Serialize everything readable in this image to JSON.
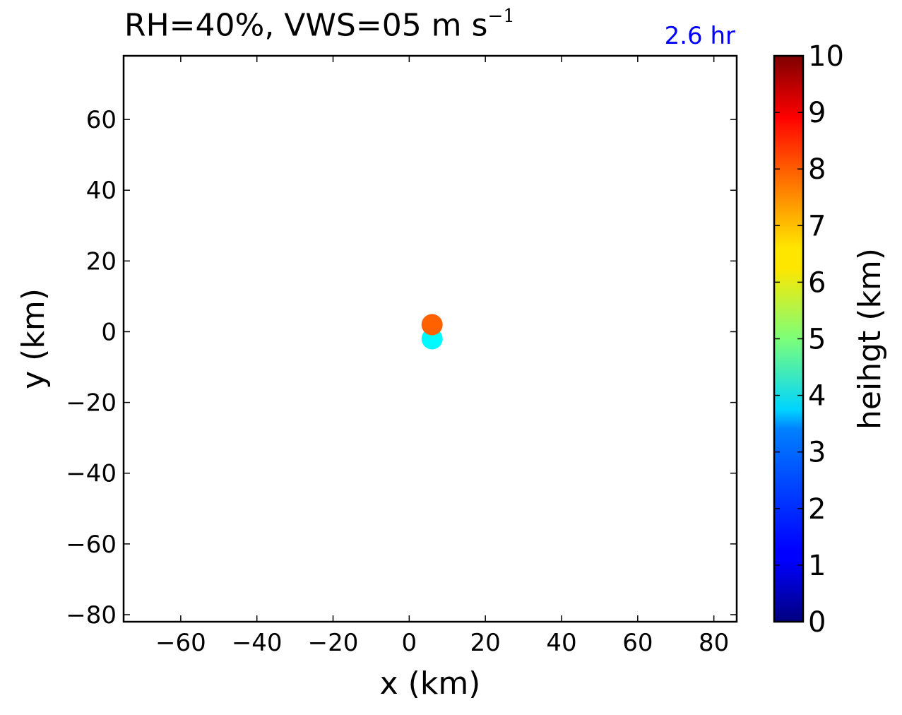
{
  "chart_data": {
    "type": "scatter",
    "title_prefix": "RH=40%, VWS=05 m s",
    "title_superscript": "−1",
    "time_label": "2.6 hr",
    "xlabel": "x (km)",
    "ylabel": "y (km)",
    "xlim": [
      -75,
      86
    ],
    "ylim": [
      -82,
      78
    ],
    "xticks": [
      -60,
      -40,
      -20,
      0,
      20,
      40,
      60,
      80
    ],
    "yticks": [
      -80,
      -60,
      -40,
      -20,
      0,
      20,
      40,
      60
    ],
    "grid": false,
    "points": [
      {
        "x": 6.0,
        "y": -2.0,
        "height": 3.7
      },
      {
        "x": 6.0,
        "y": 2.0,
        "height": 7.8
      }
    ],
    "colorbar": {
      "label": "heihgt (km)",
      "range": [
        0,
        10
      ],
      "ticks": [
        0,
        1,
        2,
        3,
        4,
        5,
        6,
        7,
        8,
        9,
        10
      ],
      "colormap": "jet"
    }
  }
}
